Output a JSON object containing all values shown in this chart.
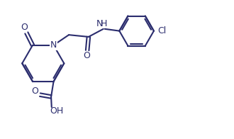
{
  "bg_color": "#ffffff",
  "line_color": "#2b2d6e",
  "line_width": 1.5,
  "font_size": 8.5,
  "figsize": [
    3.3,
    1.96
  ],
  "dpi": 100,
  "xlim": [
    0,
    9.5
  ],
  "ylim": [
    0,
    5.5
  ]
}
